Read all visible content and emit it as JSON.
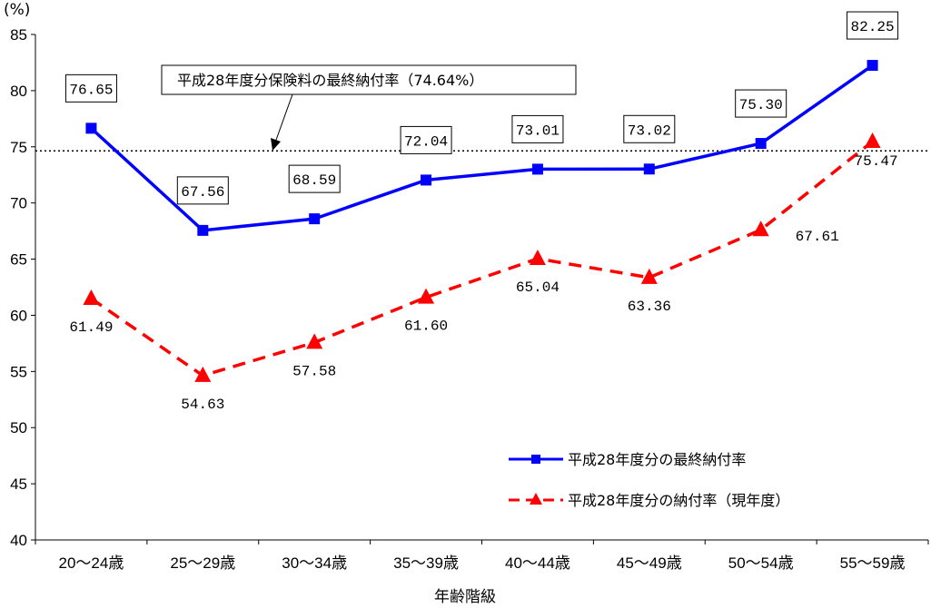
{
  "chart_data": {
    "type": "line",
    "y_unit": "(%)",
    "xlabel": "年齢階級",
    "categories": [
      "20～24歳",
      "25～29歳",
      "30～34歳",
      "35～39歳",
      "40～44歳",
      "45～49歳",
      "50～54歳",
      "55～59歳"
    ],
    "ylim": [
      40,
      85
    ],
    "yticks": [
      40,
      45,
      50,
      55,
      60,
      65,
      70,
      75,
      80,
      85
    ],
    "series": [
      {
        "name": "平成28年度分の最終納付率",
        "values": [
          76.65,
          67.56,
          68.59,
          72.04,
          73.01,
          73.02,
          75.3,
          82.25
        ],
        "labels": [
          "76.65",
          "67.56",
          "68.59",
          "72.04",
          "73.01",
          "73.02",
          "75.30",
          "82.25"
        ],
        "color": "#0000ff",
        "marker": "square",
        "line_style": "solid"
      },
      {
        "name": "平成28年度分の納付率（現年度）",
        "values": [
          61.49,
          54.63,
          57.58,
          61.6,
          65.04,
          63.36,
          67.61,
          75.47
        ],
        "labels": [
          "61.49",
          "54.63",
          "57.58",
          "61.60",
          "65.04",
          "63.36",
          "67.61",
          "75.47"
        ],
        "color": "#ff0000",
        "marker": "triangle",
        "line_style": "dashed"
      }
    ],
    "reference_line": {
      "value": 74.64,
      "label": "平成28年度分保険料の最終納付率（74.64%）",
      "style": "dotted"
    },
    "grid": false,
    "legend_position": "bottom-right"
  }
}
